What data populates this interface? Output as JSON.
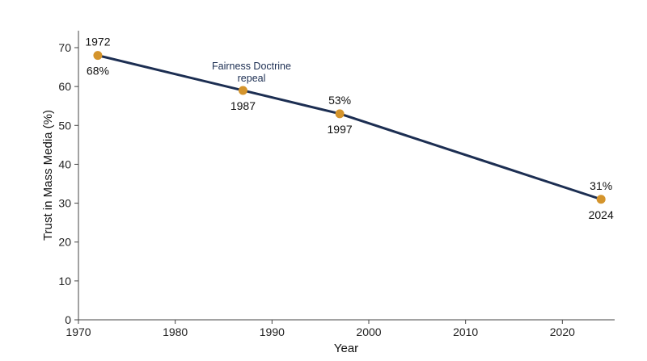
{
  "chart_data": {
    "type": "line",
    "xlabel": "Year",
    "ylabel": "Trust in Mass Media (%)",
    "xlim": [
      1970,
      2025
    ],
    "ylim": [
      0,
      74
    ],
    "xticks": [
      "1970",
      "1980",
      "1990",
      "2000",
      "2010",
      "2020"
    ],
    "yticks": [
      "0",
      "10",
      "20",
      "30",
      "40",
      "50",
      "60",
      "70"
    ],
    "grid": false,
    "series": [
      {
        "x": [
          1972,
          1987,
          1997,
          2024
        ],
        "values": [
          68,
          59,
          53,
          31
        ]
      }
    ],
    "markers": [
      {
        "x": 1972,
        "y": 68,
        "year_label": "1972",
        "value_label": "68%"
      },
      {
        "x": 1987,
        "y": 59,
        "year_label": "1987"
      },
      {
        "x": 1997,
        "y": 53,
        "year_label": "1997",
        "value_label": "53%"
      },
      {
        "x": 2024,
        "y": 31,
        "year_label": "2024",
        "value_label": "31%"
      }
    ],
    "annotations": [
      {
        "text_line1": "Fairness Doctrine",
        "text_line2": "repeal",
        "x": 1987,
        "y": 59
      }
    ],
    "colors": {
      "line": "#1c2e52",
      "marker": "#d4942c",
      "annotation": "#1c2e52",
      "axis": "#444444"
    }
  }
}
